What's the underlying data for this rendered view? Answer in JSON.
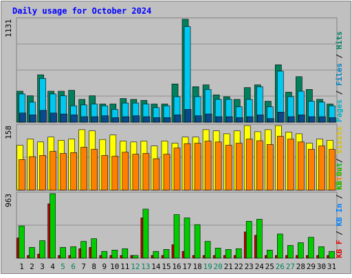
{
  "chart_data": {
    "type": "bar",
    "title": "Daily usage for October 2024",
    "categories": [
      "1",
      "2",
      "3",
      "4",
      "5",
      "6",
      "7",
      "8",
      "9",
      "10",
      "11",
      "12",
      "13",
      "14",
      "15",
      "16",
      "17",
      "18",
      "19",
      "20",
      "21",
      "22",
      "23",
      "24",
      "25",
      "26",
      "27",
      "28",
      "29",
      "30",
      "31"
    ],
    "weekend_days": [
      "5",
      "6",
      "12",
      "13",
      "19",
      "20",
      "26",
      "27"
    ],
    "panels": [
      {
        "id": "top",
        "max_label": "1131",
        "ylim": [
          0,
          1131
        ],
        "right_labels": [
          {
            "text": "Pages",
            "color": "#00b0c0"
          },
          {
            "text": " / ",
            "color": "#000000"
          },
          {
            "text": "Files",
            "color": "#0080c0"
          },
          {
            "text": " / ",
            "color": "#000000"
          },
          {
            "text": "Hits",
            "color": "#008060"
          }
        ],
        "series": [
          {
            "name": "Hits",
            "color": "#00805c",
            "values": [
              340,
              290,
              520,
              340,
              340,
              350,
              250,
              290,
              200,
              200,
              260,
              250,
              240,
              200,
              200,
              420,
              1131,
              390,
              410,
              300,
              280,
              250,
              380,
              410,
              230,
              630,
              330,
              500,
              360,
              250,
              200
            ]
          },
          {
            "name": "Files",
            "color": "#00c8f0",
            "values": [
              310,
              220,
              480,
              310,
              290,
              180,
              190,
              200,
              180,
              140,
              210,
              210,
              200,
              160,
              180,
              280,
              1050,
              280,
              360,
              250,
              250,
              170,
              250,
              390,
              170,
              560,
              280,
              340,
              230,
              220,
              180
            ]
          },
          {
            "name": "Pages",
            "color": "#0a4a8c",
            "values": [
              100,
              80,
              130,
              100,
              90,
              80,
              60,
              60,
              70,
              50,
              60,
              70,
              60,
              50,
              50,
              80,
              140,
              70,
              90,
              60,
              60,
              50,
              60,
              80,
              40,
              110,
              60,
              80,
              60,
              60,
              50
            ]
          }
        ]
      },
      {
        "id": "middle",
        "max_label": "158",
        "ylim": [
          0,
          158
        ],
        "right_labels": [
          {
            "text": "Sites",
            "color": "#ff8000"
          },
          {
            "text": " / ",
            "color": "#000000"
          },
          {
            "text": "Visits",
            "color": "#d8c000"
          }
        ],
        "series": [
          {
            "name": "Visits",
            "color": "#ffff00",
            "values": [
              110,
              125,
              118,
              130,
              122,
              125,
              148,
              145,
              124,
              135,
              120,
              118,
              120,
              108,
              120,
              115,
              130,
              130,
              148,
              145,
              138,
              145,
              158,
              143,
              148,
              158,
              142,
              138,
              115,
              125,
              122
            ]
          },
          {
            "name": "Sites",
            "color": "#ff8000",
            "values": [
              75,
              82,
              85,
              95,
              90,
              92,
              105,
              100,
              85,
              83,
              93,
              88,
              90,
              77,
              88,
              103,
              114,
              115,
              120,
              118,
              110,
              115,
              125,
              121,
              112,
              132,
              125,
              118,
              100,
              108,
              100
            ]
          }
        ]
      },
      {
        "id": "bottom",
        "max_label": "963",
        "ylim": [
          0,
          963
        ],
        "right_labels": [
          {
            "text": "KB F",
            "color": "#e00000"
          },
          {
            "text": " / ",
            "color": "#000000"
          },
          {
            "text": "KB In",
            "color": "#0080ff"
          },
          {
            "text": " / ",
            "color": "#000000"
          },
          {
            "text": "KB Out",
            "color": "#00c000"
          }
        ],
        "series": [
          {
            "name": "KB F",
            "color": "#c40000",
            "values": [
              300,
              40,
              60,
              810,
              40,
              40,
              140,
              160,
              40,
              40,
              40,
              40,
              600,
              40,
              40,
              200,
              100,
              40,
              40,
              40,
              40,
              40,
              390,
              340,
              40,
              40,
              40,
              40,
              40,
              40,
              40
            ]
          },
          {
            "name": "KB Out",
            "color": "#00cc00",
            "values": [
              480,
              160,
              260,
              963,
              160,
              170,
              250,
              290,
              100,
              120,
              140,
              40,
              730,
              100,
              130,
              650,
              600,
              500,
              250,
              150,
              130,
              140,
              550,
              580,
              120,
              360,
              190,
              230,
              310,
              170,
              100
            ]
          }
        ]
      }
    ]
  },
  "colors": {
    "background": "#c0c0c0",
    "plot_area": "#c0c0c0",
    "frame": "#808080",
    "title": "#0000ff",
    "axis_label": "#000000",
    "weekend_label": "#00805c",
    "gridline": "#909090"
  }
}
